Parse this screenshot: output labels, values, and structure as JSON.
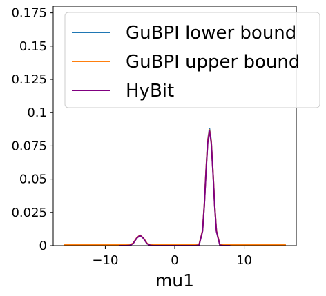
{
  "chart_data": {
    "type": "line",
    "title": "",
    "xlabel": "mu1",
    "ylabel": "",
    "xlim": [
      -17.5,
      17.5
    ],
    "ylim": [
      0,
      0.18
    ],
    "x_ticks": [
      -10,
      0,
      10
    ],
    "x_tick_labels": [
      "−10",
      "0",
      "10"
    ],
    "y_ticks": [
      0,
      0.025,
      0.05,
      0.075,
      0.1,
      0.125,
      0.15,
      0.175
    ],
    "y_tick_labels": [
      "0",
      "0.025",
      "0.05",
      "0.075",
      "0.1",
      "0.125",
      "0.15",
      "0.175"
    ],
    "grid": false,
    "legend_position": "top-right",
    "series": [
      {
        "name": "GuBPI lower bound",
        "color": "#1f77b4",
        "x": [
          -16,
          -8,
          -7,
          -6.5,
          -6,
          -5.5,
          -5,
          -4.5,
          -4,
          -3.5,
          -3,
          -2,
          0,
          2,
          3,
          3.5,
          4,
          4.25,
          4.5,
          4.75,
          5,
          5.25,
          5.5,
          5.75,
          6,
          6.5,
          7,
          8,
          12,
          16
        ],
        "y": [
          0,
          0,
          0,
          0.0002,
          0.0015,
          0.0055,
          0.0078,
          0.0055,
          0.0015,
          0.0002,
          0,
          0,
          0,
          0,
          0,
          0.0004,
          0.011,
          0.03,
          0.056,
          0.079,
          0.088,
          0.079,
          0.056,
          0.03,
          0.011,
          0.0004,
          0,
          0,
          0,
          0
        ]
      },
      {
        "name": "GuBPI upper bound",
        "color": "#ff7f0e",
        "x": [
          -16,
          -8,
          -7,
          -6.5,
          -6,
          -5.5,
          -5,
          -4.5,
          -4,
          -3.5,
          -3,
          -2,
          0,
          2,
          3,
          3.5,
          4,
          4.25,
          4.5,
          4.75,
          5,
          5.25,
          5.5,
          5.75,
          6,
          6.5,
          7,
          8,
          12,
          16
        ],
        "y": [
          0.0005,
          0.0005,
          0.0005,
          0.0006,
          0.0017,
          0.0057,
          0.008,
          0.0057,
          0.0017,
          0.0006,
          0.0005,
          0.0005,
          0.0005,
          0.0005,
          0.0005,
          0.0008,
          0.0113,
          0.0302,
          0.0562,
          0.0785,
          0.087,
          0.0785,
          0.0562,
          0.0302,
          0.0113,
          0.0008,
          0.0005,
          0.0005,
          0.0005,
          0.0005
        ]
      },
      {
        "name": "HyBit",
        "color": "#800080",
        "x": [
          -8,
          -7,
          -6.5,
          -6,
          -5.5,
          -5,
          -4.5,
          -4,
          -3.5,
          -3,
          -2,
          0,
          2,
          3,
          3.5,
          4,
          4.25,
          4.5,
          4.75,
          5,
          5.25,
          5.5,
          5.75,
          6,
          6.5,
          7,
          8
        ],
        "y": [
          0,
          0,
          0.0002,
          0.0015,
          0.0055,
          0.0078,
          0.0055,
          0.0015,
          0.0002,
          0,
          0,
          0,
          0,
          0,
          0.0004,
          0.0108,
          0.0296,
          0.0552,
          0.0775,
          0.0862,
          0.0775,
          0.0552,
          0.0296,
          0.0108,
          0.0004,
          0,
          0
        ]
      }
    ]
  }
}
